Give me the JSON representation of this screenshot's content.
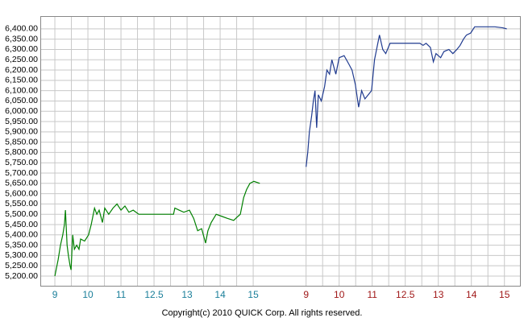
{
  "chart_data": {
    "type": "line",
    "footer": "Copyright(c) 2010 QUICK Corp. All rights reserved.",
    "xlim": [
      -0.44,
      14.07
    ],
    "xticks": [
      {
        "value": 0,
        "label": "9",
        "color": "#1b7f9a"
      },
      {
        "value": 1,
        "label": "10",
        "color": "#1b7f9a"
      },
      {
        "value": 2,
        "label": "11",
        "color": "#1b7f9a"
      },
      {
        "value": 3,
        "label": "12.5",
        "color": "#1b7f9a"
      },
      {
        "value": 4,
        "label": "13",
        "color": "#1b7f9a"
      },
      {
        "value": 5,
        "label": "14",
        "color": "#1b7f9a"
      },
      {
        "value": 6,
        "label": "15",
        "color": "#1b7f9a"
      },
      {
        "value": 7.6,
        "label": "9",
        "color": "#a01818"
      },
      {
        "value": 8.6,
        "label": "10",
        "color": "#a01818"
      },
      {
        "value": 9.6,
        "label": "11",
        "color": "#a01818"
      },
      {
        "value": 10.6,
        "label": "12.5",
        "color": "#a01818"
      },
      {
        "value": 11.6,
        "label": "13",
        "color": "#a01818"
      },
      {
        "value": 12.6,
        "label": "14",
        "color": "#a01818"
      },
      {
        "value": 13.6,
        "label": "15",
        "color": "#a01818"
      }
    ],
    "ylim": [
      5153,
      6462
    ],
    "yticks": [
      {
        "value": 5200,
        "label": "5,200.00"
      },
      {
        "value": 5250,
        "label": "5,250.00"
      },
      {
        "value": 5300,
        "label": "5,300.00"
      },
      {
        "value": 5350,
        "label": "5,350.00"
      },
      {
        "value": 5400,
        "label": "5,400.00"
      },
      {
        "value": 5450,
        "label": "5,450.00"
      },
      {
        "value": 5500,
        "label": "5,500.00"
      },
      {
        "value": 5550,
        "label": "5,550.00"
      },
      {
        "value": 5600,
        "label": "5,600.00"
      },
      {
        "value": 5650,
        "label": "5,650.00"
      },
      {
        "value": 5700,
        "label": "5,700.00"
      },
      {
        "value": 5750,
        "label": "5,750.00"
      },
      {
        "value": 5800,
        "label": "5,800.00"
      },
      {
        "value": 5850,
        "label": "5,850.00"
      },
      {
        "value": 5900,
        "label": "5,900.00"
      },
      {
        "value": 5950,
        "label": "5,950.00"
      },
      {
        "value": 6000,
        "label": "6,000.00"
      },
      {
        "value": 6050,
        "label": "6,050.00"
      },
      {
        "value": 6100,
        "label": "6,100.00"
      },
      {
        "value": 6150,
        "label": "6,150.00"
      },
      {
        "value": 6200,
        "label": "6,200.00"
      },
      {
        "value": 6250,
        "label": "6,250.00"
      },
      {
        "value": 6300,
        "label": "6,300.00"
      },
      {
        "value": 6350,
        "label": "6,350.00"
      },
      {
        "value": 6400,
        "label": "6,400.00"
      }
    ],
    "grid": true,
    "series": [
      {
        "color": "#008000",
        "x": [
          0,
          0.1,
          0.17,
          0.24,
          0.29,
          0.32,
          0.37,
          0.41,
          0.46,
          0.49,
          0.54,
          0.59,
          0.66,
          0.73,
          0.78,
          0.9,
          1.02,
          1.1,
          1.2,
          1.27,
          1.34,
          1.44,
          1.51,
          1.63,
          1.76,
          1.88,
          2,
          2.12,
          2.24,
          2.37,
          2.54,
          2.98,
          3.59,
          3.63,
          3.76,
          3.9,
          4.07,
          4.2,
          4.32,
          4.44,
          4.56,
          4.63,
          4.73,
          4.88,
          5.05,
          5.22,
          5.41,
          5.54,
          5.61,
          5.71,
          5.8,
          5.9,
          6.02,
          6.2
        ],
        "values": [
          5200,
          5280,
          5350,
          5400,
          5450,
          5520,
          5350,
          5300,
          5250,
          5230,
          5400,
          5330,
          5350,
          5330,
          5380,
          5370,
          5400,
          5450,
          5530,
          5500,
          5520,
          5460,
          5530,
          5500,
          5530,
          5550,
          5520,
          5540,
          5510,
          5520,
          5500,
          5500,
          5500,
          5530,
          5520,
          5510,
          5520,
          5480,
          5420,
          5430,
          5360,
          5420,
          5460,
          5500,
          5490,
          5480,
          5470,
          5490,
          5500,
          5580,
          5620,
          5650,
          5660,
          5650
        ]
      },
      {
        "color": "#1f3a8f",
        "x": [
          7.6,
          7.65,
          7.7,
          7.77,
          7.82,
          7.87,
          7.92,
          7.97,
          8.06,
          8.16,
          8.23,
          8.31,
          8.38,
          8.5,
          8.6,
          8.75,
          8.89,
          8.99,
          9.09,
          9.19,
          9.28,
          9.38,
          9.48,
          9.58,
          9.67,
          9.77,
          9.82,
          9.92,
          10.01,
          10.14,
          11.04,
          11.14,
          11.23,
          11.36,
          11.45,
          11.53,
          11.67,
          11.77,
          11.92,
          12.04,
          12.16,
          12.26,
          12.36,
          12.45,
          12.58,
          12.7,
          13.31,
          13.55,
          13.67
        ],
        "values": [
          5730,
          5800,
          5900,
          5980,
          6050,
          6100,
          5920,
          6080,
          6050,
          6120,
          6200,
          6180,
          6250,
          6180,
          6260,
          6270,
          6230,
          6200,
          6130,
          6020,
          6100,
          6060,
          6080,
          6100,
          6250,
          6330,
          6370,
          6300,
          6280,
          6330,
          6330,
          6320,
          6330,
          6310,
          6240,
          6280,
          6260,
          6290,
          6300,
          6280,
          6300,
          6320,
          6350,
          6370,
          6380,
          6410,
          6410,
          6405,
          6400
        ]
      }
    ]
  }
}
